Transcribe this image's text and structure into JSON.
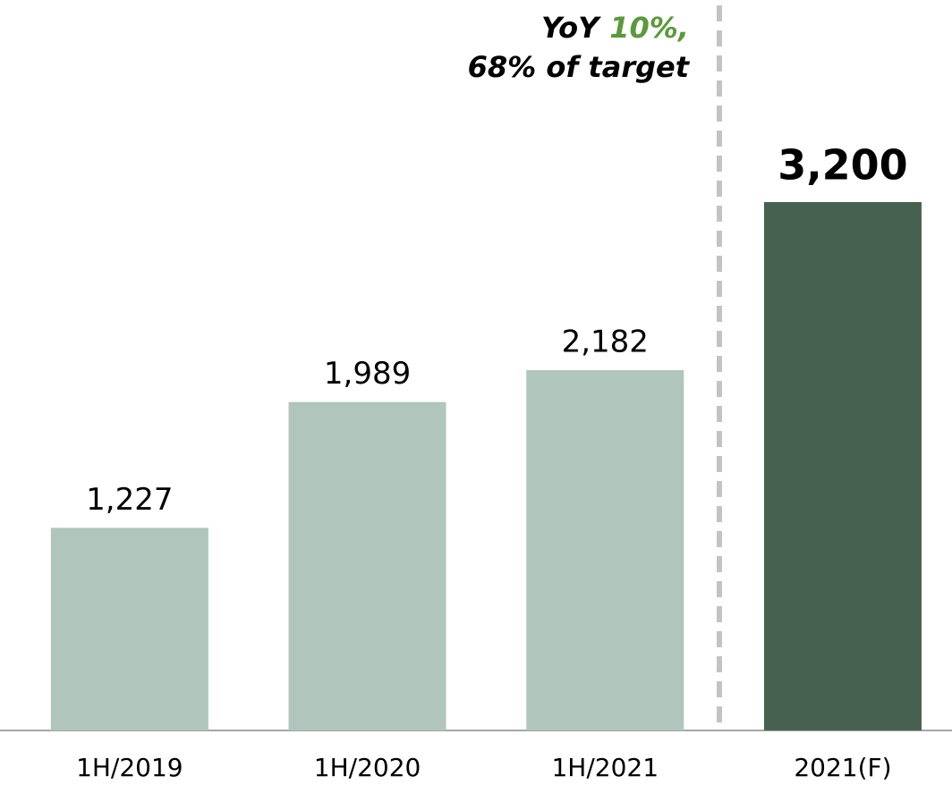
{
  "chart_data": {
    "type": "bar",
    "categories": [
      "1H/2019",
      "1H/2020",
      "1H/2021",
      "2021(F)"
    ],
    "values": [
      1227,
      1989,
      2182,
      3200
    ],
    "value_labels": [
      "1,227",
      "1,989",
      "2,182",
      "3,200"
    ],
    "colors": [
      "#b0c5bb",
      "#b0c5bb",
      "#b0c5bb",
      "#476151"
    ],
    "label_bold": [
      false,
      false,
      false,
      true
    ],
    "ylim": [
      0,
      4400
    ],
    "annotation": {
      "prefix": "YoY",
      "highlight": "10%,",
      "highlight_color": "#5a9a3a",
      "line2": "68% of target"
    }
  }
}
